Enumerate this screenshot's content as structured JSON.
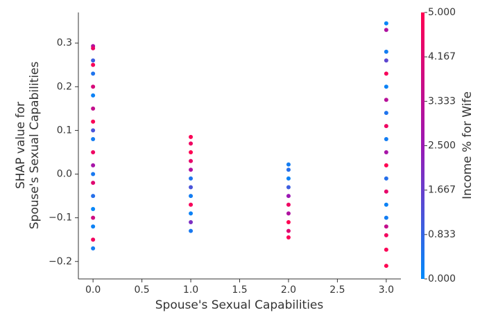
{
  "chart_data": {
    "type": "scatter",
    "xlabel": "Spouse's Sexual Capabilities",
    "ylabel": [
      "SHAP value for",
      "Spouse's Sexual Capabilities"
    ],
    "colorbar_label": "Income % for Wife",
    "colormap": [
      "#008bfb",
      "#9b18b4",
      "#ff0052"
    ],
    "xlim": [
      -0.15,
      3.15
    ],
    "ylim": [
      -0.24,
      0.37
    ],
    "xticks": [
      {
        "value": 0,
        "label": "0.0"
      },
      0.5,
      {
        "value": 1,
        "label": "1.0"
      },
      1.5,
      {
        "value": 2,
        "label": "2.0"
      },
      2.5,
      {
        "value": 3,
        "label": "3.0"
      }
    ],
    "yticks": [
      {
        "value": -0.2,
        "label": "−0.2"
      },
      {
        "value": -0.1,
        "label": "−0.1"
      },
      {
        "value": 0,
        "label": "0.0"
      },
      0.1,
      0.2,
      0.3
    ],
    "clim": [
      0,
      5
    ],
    "cticks": [
      {
        "value": 0,
        "label": "0.000"
      },
      {
        "value": 0.833,
        "label": "0.833"
      },
      {
        "value": 1.667,
        "label": "1.667"
      },
      {
        "value": 2.5,
        "label": "2.500"
      },
      {
        "value": 3.333,
        "label": "3.333"
      },
      {
        "value": 4.167,
        "label": "4.167"
      },
      {
        "value": 5,
        "label": "5.000"
      }
    ],
    "x": [
      0,
      0,
      0,
      0,
      0,
      0,
      0,
      0,
      0,
      0,
      0,
      0,
      0,
      0,
      0,
      0,
      0,
      0,
      0,
      0,
      0,
      1,
      1,
      1,
      1,
      1,
      1,
      1,
      1,
      1,
      1,
      1,
      1,
      2,
      2,
      2,
      2,
      2,
      2,
      2,
      2,
      2,
      2,
      3,
      3,
      3,
      3,
      3,
      3,
      3,
      3,
      3,
      3,
      3,
      3,
      3,
      3,
      3,
      3,
      3,
      3,
      3,
      3
    ],
    "y": [
      0.293,
      0.288,
      0.26,
      0.25,
      0.23,
      0.2,
      0.18,
      0.15,
      0.12,
      0.1,
      0.08,
      0.05,
      0.02,
      0.0,
      -0.02,
      -0.05,
      -0.08,
      -0.1,
      -0.12,
      -0.15,
      -0.17,
      0.085,
      0.07,
      0.05,
      0.03,
      0.01,
      -0.01,
      -0.03,
      -0.05,
      -0.07,
      -0.09,
      -0.11,
      -0.13,
      0.022,
      0.01,
      -0.01,
      -0.03,
      -0.05,
      -0.07,
      -0.09,
      -0.11,
      -0.13,
      -0.145,
      0.345,
      0.33,
      0.28,
      0.26,
      0.23,
      0.2,
      0.17,
      0.14,
      0.11,
      0.08,
      0.05,
      0.02,
      -0.01,
      -0.04,
      -0.07,
      -0.1,
      -0.12,
      -0.14,
      -0.173,
      -0.21
    ],
    "color_values": [
      3.0,
      4.5,
      1.0,
      4.8,
      0.5,
      4.0,
      0.2,
      3.5,
      4.9,
      1.2,
      0.3,
      4.6,
      2.8,
      0.4,
      4.2,
      0.6,
      0.1,
      3.8,
      0.2,
      4.7,
      0.3,
      4.9,
      4.6,
      5.0,
      4.4,
      3.0,
      0.5,
      1.2,
      0.3,
      4.8,
      0.2,
      2.0,
      0.4,
      0.3,
      0.6,
      0.2,
      1.0,
      2.5,
      4.6,
      3.0,
      5.0,
      4.2,
      4.9,
      0.1,
      3.0,
      0.3,
      1.5,
      4.8,
      0.2,
      3.2,
      0.5,
      4.6,
      0.3,
      2.8,
      5.0,
      0.6,
      4.4,
      0.2,
      0.3,
      3.5,
      4.7,
      4.9,
      5.0
    ]
  }
}
